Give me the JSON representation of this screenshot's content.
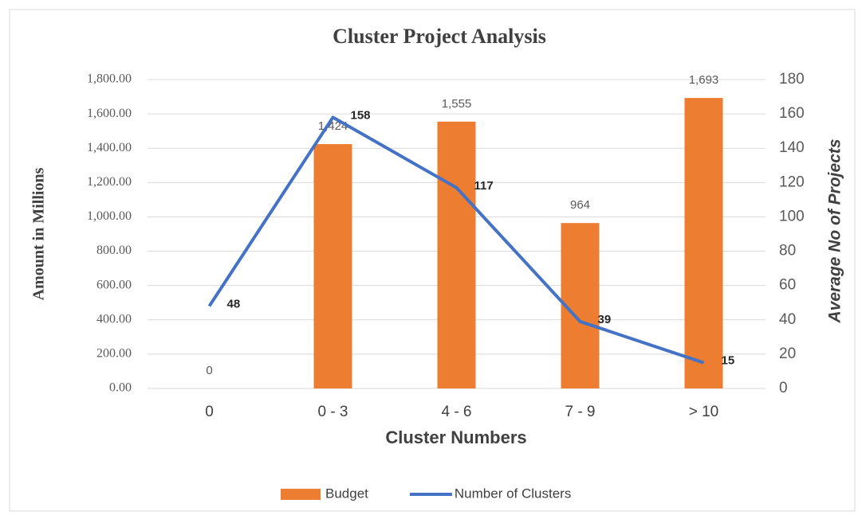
{
  "chart_data": {
    "type": "combo",
    "title": "Cluster Project Analysis",
    "xlabel": "Cluster Numbers",
    "ylabel": "Amount in Millions",
    "y2label": "Average No of Projects",
    "categories": [
      "0",
      "0 - 3",
      "4 - 6",
      "7 - 9",
      "> 10"
    ],
    "series": [
      {
        "name": "Budget",
        "type": "bar",
        "color": "#ed7d31",
        "values": [
          0,
          1424,
          1555,
          964,
          1693
        ],
        "value_labels": [
          "0",
          "1,424",
          "1,555",
          "964",
          "1,693"
        ]
      },
      {
        "name": "Number of Clusters",
        "type": "line",
        "axis": "y2",
        "color": "#4472c4",
        "values": [
          48,
          158,
          117,
          39,
          15
        ]
      }
    ],
    "ylim": [
      0,
      1800
    ],
    "yticks": [
      {
        "value": 0,
        "label": "0.00"
      },
      {
        "value": 200,
        "label": "200.00"
      },
      {
        "value": 400,
        "label": "400.00"
      },
      {
        "value": 600,
        "label": "600.00"
      },
      {
        "value": 800,
        "label": "800.00"
      },
      {
        "value": 1000,
        "label": "1,000.00"
      },
      {
        "value": 1200,
        "label": "1,200.00"
      },
      {
        "value": 1400,
        "label": "1,400.00"
      },
      {
        "value": 1600,
        "label": "1,600.00"
      },
      {
        "value": 1800,
        "label": "1,800.00"
      }
    ],
    "y2lim": [
      0,
      180
    ],
    "y2ticks": [
      0,
      20,
      40,
      60,
      80,
      100,
      120,
      140,
      160,
      180
    ],
    "grid": true,
    "legend": "bottom"
  }
}
